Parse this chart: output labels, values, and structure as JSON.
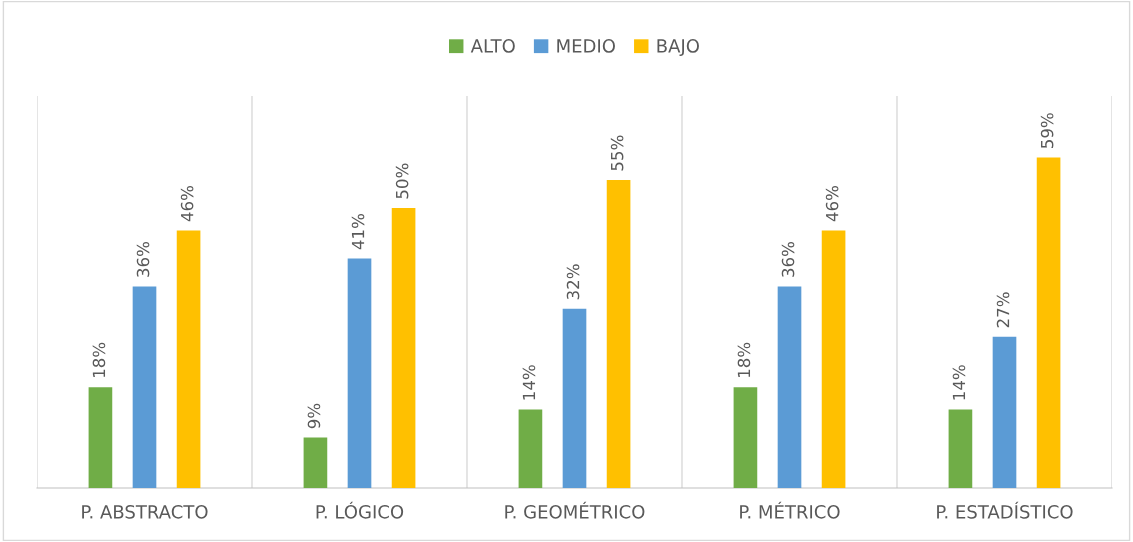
{
  "chart_data": {
    "type": "bar",
    "categories": [
      "P. ABSTRACTO",
      "P. LÓGICO",
      "P. GEOMÉTRICO",
      "P. MÉTRICO",
      "P. ESTADÍSTICO"
    ],
    "series": [
      {
        "name": "ALTO",
        "color": "#70ad47",
        "values": [
          18,
          9,
          14,
          18,
          14
        ],
        "value_labels": [
          "18%",
          "9%",
          "14%",
          "18%",
          "14%"
        ]
      },
      {
        "name": "MEDIO",
        "color": "#5b9bd5",
        "values": [
          36,
          41,
          32,
          36,
          27
        ],
        "value_labels": [
          "36%",
          "41%",
          "32%",
          "36%",
          "27%"
        ]
      },
      {
        "name": "BAJO",
        "color": "#ffc000",
        "values": [
          46,
          50,
          55,
          46,
          59
        ],
        "value_labels": [
          "46%",
          "50%",
          "55%",
          "46%",
          "59%"
        ]
      }
    ],
    "ylim": [
      0,
      70
    ],
    "grid": "x",
    "legend": "top",
    "tick_labels": "x"
  }
}
